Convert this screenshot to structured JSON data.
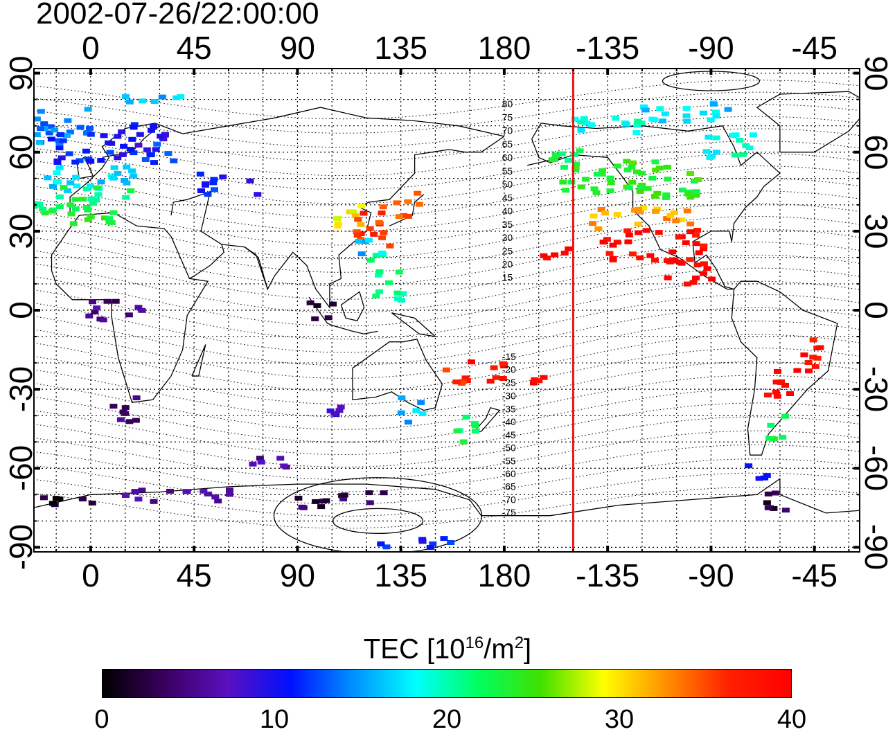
{
  "title": "2002-07-26/22:00:00",
  "top_axis_ticks": [
    "0",
    "45",
    "90",
    "135",
    "180",
    "-135",
    "-90",
    "-45"
  ],
  "bottom_axis_ticks": [
    "0",
    "45",
    "90",
    "135",
    "180",
    "-135",
    "-90",
    "-45"
  ],
  "left_axis_ticks": [
    "90",
    "60",
    "30",
    "0",
    "-30",
    "-60",
    "-90"
  ],
  "right_axis_ticks": [
    "90",
    "60",
    "30",
    "0",
    "-30",
    "-60",
    "-90"
  ],
  "map": {
    "projection": "equirectangular",
    "lon_range": [
      -25,
      335
    ],
    "lat_range": [
      -92,
      92
    ],
    "grid": true,
    "coastlines": true,
    "terminator_meridian_lon": -150,
    "terminator_color": "#ee1111",
    "contour_labels": [
      "80",
      "75",
      "70",
      "65",
      "60",
      "55",
      "50",
      "45",
      "40",
      "35",
      "30",
      "25",
      "20",
      "15",
      "-15",
      "-20",
      "-25",
      "-30",
      "-35",
      "-40",
      "-45",
      "-50",
      "-55",
      "-60",
      "-65",
      "-70",
      "-75"
    ]
  },
  "colorbar": {
    "label_main": "TEC  [10",
    "label_sup1": "16",
    "label_mid": "/m",
    "label_sup2": "2",
    "label_end": "]",
    "min": 0,
    "max": 40,
    "tick_labels": [
      "0",
      "10",
      "20",
      "30",
      "40"
    ],
    "colormap": [
      "#000000",
      "#3a0060",
      "#5a10c0",
      "#0010ff",
      "#0090ff",
      "#00ffff",
      "#00ff60",
      "#40e000",
      "#ffff00",
      "#ff9000",
      "#ff2000",
      "#ff0000"
    ]
  },
  "tec_patches": [
    {
      "lon": -20,
      "lat": 70,
      "w": 40,
      "h": 15,
      "value": 14
    },
    {
      "lon": 0,
      "lat": 62,
      "w": 35,
      "h": 12,
      "value": 11
    },
    {
      "lon": 20,
      "lat": 65,
      "w": 25,
      "h": 12,
      "value": 10
    },
    {
      "lon": 30,
      "lat": 60,
      "w": 15,
      "h": 8,
      "value": 13
    },
    {
      "lon": 0,
      "lat": 50,
      "w": 40,
      "h": 10,
      "value": 17
    },
    {
      "lon": -5,
      "lat": 42,
      "w": 45,
      "h": 10,
      "value": 22
    },
    {
      "lon": 0,
      "lat": 36,
      "w": 35,
      "h": 6,
      "value": 24
    },
    {
      "lon": 25,
      "lat": 80,
      "w": 30,
      "h": 4,
      "value": 16
    },
    {
      "lon": 60,
      "lat": 48,
      "w": 25,
      "h": 8,
      "value": 11
    },
    {
      "lon": 112,
      "lat": 35,
      "w": 12,
      "h": 12,
      "value": 30
    },
    {
      "lon": 122,
      "lat": 32,
      "w": 18,
      "h": 15,
      "value": 36
    },
    {
      "lon": 138,
      "lat": 40,
      "w": 12,
      "h": 10,
      "value": 35
    },
    {
      "lon": 118,
      "lat": 25,
      "w": 10,
      "h": 8,
      "value": 16
    },
    {
      "lon": 125,
      "lat": 18,
      "w": 8,
      "h": 8,
      "value": 20
    },
    {
      "lon": 130,
      "lat": 10,
      "w": 12,
      "h": 15,
      "value": 21
    },
    {
      "lon": 203,
      "lat": 23,
      "w": 12,
      "h": 8,
      "value": 40
    },
    {
      "lon": 235,
      "lat": 50,
      "w": 60,
      "h": 15,
      "value": 24
    },
    {
      "lon": 240,
      "lat": 35,
      "w": 45,
      "h": 8,
      "value": 32
    },
    {
      "lon": 245,
      "lat": 25,
      "w": 45,
      "h": 12,
      "value": 39
    },
    {
      "lon": 260,
      "lat": 15,
      "w": 25,
      "h": 10,
      "value": 40
    },
    {
      "lon": 280,
      "lat": 62,
      "w": 25,
      "h": 10,
      "value": 19
    },
    {
      "lon": 260,
      "lat": 75,
      "w": 40,
      "h": 8,
      "value": 17
    },
    {
      "lon": 225,
      "lat": 70,
      "w": 30,
      "h": 8,
      "value": 19
    },
    {
      "lon": 210,
      "lat": 60,
      "w": 20,
      "h": 6,
      "value": 22
    },
    {
      "lon": 170,
      "lat": -23,
      "w": 20,
      "h": 8,
      "value": 39
    },
    {
      "lon": 158,
      "lat": -25,
      "w": 12,
      "h": 6,
      "value": 37
    },
    {
      "lon": 195,
      "lat": -25,
      "w": 10,
      "h": 8,
      "value": 40
    },
    {
      "lon": 165,
      "lat": -45,
      "w": 12,
      "h": 10,
      "value": 22
    },
    {
      "lon": 140,
      "lat": -38,
      "w": 10,
      "h": 10,
      "value": 16
    },
    {
      "lon": 110,
      "lat": -38,
      "w": 15,
      "h": 6,
      "value": 8
    },
    {
      "lon": 15,
      "lat": -38,
      "w": 15,
      "h": 10,
      "value": 4
    },
    {
      "lon": 300,
      "lat": -28,
      "w": 15,
      "h": 12,
      "value": 40
    },
    {
      "lon": 315,
      "lat": -18,
      "w": 12,
      "h": 14,
      "value": 38
    },
    {
      "lon": 300,
      "lat": -45,
      "w": 10,
      "h": 10,
      "value": 22
    },
    {
      "lon": 290,
      "lat": -60,
      "w": 10,
      "h": 8,
      "value": 10
    },
    {
      "lon": 295,
      "lat": -72,
      "w": 15,
      "h": 8,
      "value": 3
    },
    {
      "lon": 110,
      "lat": -72,
      "w": 40,
      "h": 6,
      "value": 3
    },
    {
      "lon": 40,
      "lat": -70,
      "w": 55,
      "h": 5,
      "value": 6
    },
    {
      "lon": -15,
      "lat": -72,
      "w": 35,
      "h": 4,
      "value": 1
    },
    {
      "lon": 145,
      "lat": -88,
      "w": 40,
      "h": 4,
      "value": 11
    },
    {
      "lon": 75,
      "lat": -58,
      "w": 20,
      "h": 5,
      "value": 6
    },
    {
      "lon": 100,
      "lat": 0,
      "w": 12,
      "h": 8,
      "value": 1
    },
    {
      "lon": 10,
      "lat": 0,
      "w": 25,
      "h": 8,
      "value": 5
    }
  ]
}
